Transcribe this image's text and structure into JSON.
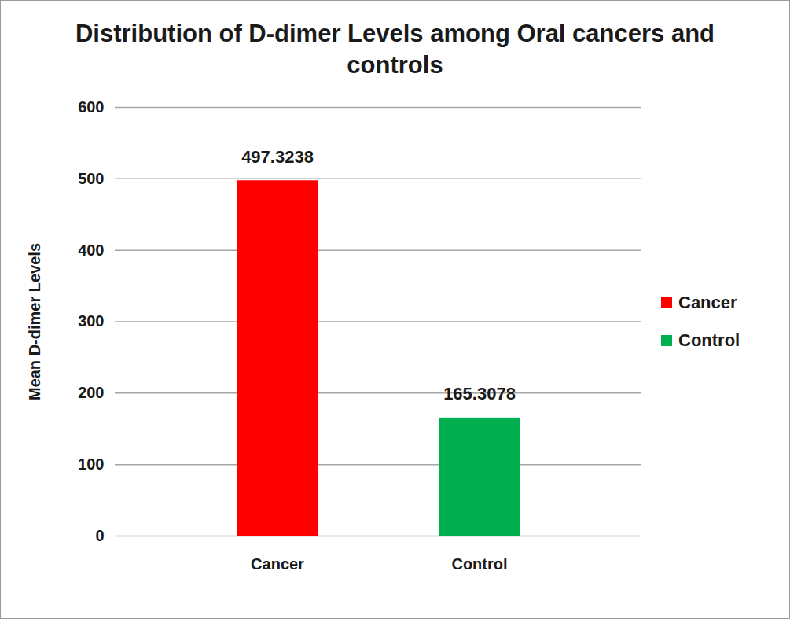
{
  "chart_data": {
    "type": "bar",
    "title": "Distribution of D-dimer Levels among Oral cancers and controls",
    "y_label": "Mean D-dimer Levels",
    "categories": [
      "Cancer",
      "Control"
    ],
    "values": [
      497.3238,
      165.3078
    ],
    "colors": [
      "#ff0000",
      "#00b050"
    ],
    "ylim": [
      0,
      600
    ],
    "yticks": [
      0,
      100,
      200,
      300,
      400,
      500,
      600
    ],
    "grid": true,
    "data_labels": true,
    "legend": "right"
  }
}
